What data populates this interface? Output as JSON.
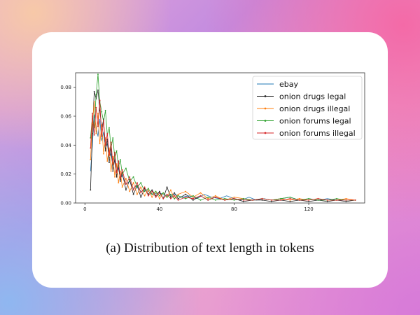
{
  "caption": "(a) Distribution of text length in tokens",
  "chart_data": {
    "type": "line",
    "title": "",
    "xlabel": "",
    "ylabel": "",
    "xlim": [
      -5,
      150
    ],
    "ylim": [
      0,
      0.09
    ],
    "xticks": [
      0,
      40,
      80,
      120
    ],
    "yticks": [
      0.0,
      0.02,
      0.04,
      0.06,
      0.08
    ],
    "ytick_labels": [
      "0.00",
      "0.02",
      "0.04",
      "0.06",
      "0.08"
    ],
    "grid": false,
    "legend_position": "upper right",
    "series": [
      {
        "name": "ebay",
        "color": "#1f77b4",
        "marker": "none",
        "points": [
          [
            3,
            0.022
          ],
          [
            4,
            0.04
          ],
          [
            5,
            0.061
          ],
          [
            6,
            0.052
          ],
          [
            7,
            0.046
          ],
          [
            8,
            0.058
          ],
          [
            9,
            0.043
          ],
          [
            10,
            0.049
          ],
          [
            11,
            0.037
          ],
          [
            12,
            0.041
          ],
          [
            13,
            0.031
          ],
          [
            14,
            0.034
          ],
          [
            15,
            0.026
          ],
          [
            16,
            0.029
          ],
          [
            17,
            0.021
          ],
          [
            18,
            0.024
          ],
          [
            19,
            0.017
          ],
          [
            20,
            0.019
          ],
          [
            22,
            0.013
          ],
          [
            24,
            0.015
          ],
          [
            26,
            0.01
          ],
          [
            28,
            0.012
          ],
          [
            30,
            0.008
          ],
          [
            33,
            0.009
          ],
          [
            36,
            0.006
          ],
          [
            40,
            0.007
          ],
          [
            44,
            0.005
          ],
          [
            48,
            0.006
          ],
          [
            52,
            0.004
          ],
          [
            56,
            0.005
          ],
          [
            60,
            0.003
          ],
          [
            64,
            0.006
          ],
          [
            68,
            0.004
          ],
          [
            72,
            0.003
          ],
          [
            76,
            0.005
          ],
          [
            80,
            0.003
          ],
          [
            84,
            0.002
          ],
          [
            88,
            0.004
          ],
          [
            92,
            0.002
          ],
          [
            96,
            0.003
          ],
          [
            100,
            0.002
          ],
          [
            105,
            0.003
          ],
          [
            110,
            0.004
          ],
          [
            115,
            0.002
          ],
          [
            120,
            0.003
          ],
          [
            125,
            0.002
          ],
          [
            130,
            0.003
          ],
          [
            135,
            0.002
          ],
          [
            140,
            0.002
          ],
          [
            145,
            0.002
          ]
        ]
      },
      {
        "name": "onion drugs legal",
        "color": "#222222",
        "marker": "dot",
        "points": [
          [
            3,
            0.009
          ],
          [
            4,
            0.048
          ],
          [
            5,
            0.077
          ],
          [
            6,
            0.072
          ],
          [
            7,
            0.078
          ],
          [
            8,
            0.064
          ],
          [
            9,
            0.051
          ],
          [
            10,
            0.058
          ],
          [
            11,
            0.036
          ],
          [
            12,
            0.044
          ],
          [
            13,
            0.028
          ],
          [
            14,
            0.039
          ],
          [
            15,
            0.022
          ],
          [
            16,
            0.031
          ],
          [
            17,
            0.018
          ],
          [
            18,
            0.026
          ],
          [
            19,
            0.015
          ],
          [
            20,
            0.021
          ],
          [
            22,
            0.009
          ],
          [
            24,
            0.016
          ],
          [
            26,
            0.006
          ],
          [
            28,
            0.012
          ],
          [
            30,
            0.004
          ],
          [
            32,
            0.01
          ],
          [
            34,
            0.006
          ],
          [
            36,
            0.009
          ],
          [
            38,
            0.005
          ],
          [
            40,
            0.008
          ],
          [
            42,
            0.003
          ],
          [
            44,
            0.011
          ],
          [
            46,
            0.004
          ],
          [
            48,
            0.007
          ],
          [
            50,
            0.003
          ],
          [
            54,
            0.006
          ],
          [
            58,
            0.002
          ],
          [
            62,
            0.005
          ],
          [
            66,
            0.002
          ],
          [
            70,
            0.004
          ],
          [
            75,
            0.002
          ],
          [
            80,
            0.003
          ],
          [
            85,
            0.001
          ],
          [
            90,
            0.002
          ],
          [
            95,
            0.002
          ],
          [
            100,
            0.001
          ],
          [
            105,
            0.002
          ],
          [
            110,
            0.001
          ],
          [
            115,
            0.002
          ],
          [
            120,
            0.001
          ],
          [
            125,
            0.002
          ],
          [
            130,
            0.001
          ],
          [
            135,
            0.002
          ],
          [
            140,
            0.001
          ],
          [
            145,
            0.002
          ]
        ]
      },
      {
        "name": "onion drugs illegal",
        "color": "#ff7f0e",
        "marker": "dot",
        "points": [
          [
            3,
            0.03
          ],
          [
            4,
            0.055
          ],
          [
            5,
            0.07
          ],
          [
            6,
            0.048
          ],
          [
            7,
            0.062
          ],
          [
            8,
            0.041
          ],
          [
            9,
            0.054
          ],
          [
            10,
            0.034
          ],
          [
            11,
            0.045
          ],
          [
            12,
            0.029
          ],
          [
            13,
            0.038
          ],
          [
            14,
            0.022
          ],
          [
            15,
            0.032
          ],
          [
            16,
            0.018
          ],
          [
            17,
            0.027
          ],
          [
            18,
            0.014
          ],
          [
            19,
            0.022
          ],
          [
            20,
            0.011
          ],
          [
            22,
            0.017
          ],
          [
            24,
            0.008
          ],
          [
            26,
            0.014
          ],
          [
            28,
            0.006
          ],
          [
            30,
            0.011
          ],
          [
            32,
            0.005
          ],
          [
            34,
            0.009
          ],
          [
            36,
            0.004
          ],
          [
            38,
            0.008
          ],
          [
            40,
            0.003
          ],
          [
            42,
            0.007
          ],
          [
            44,
            0.004
          ],
          [
            46,
            0.009
          ],
          [
            48,
            0.003
          ],
          [
            50,
            0.006
          ],
          [
            54,
            0.008
          ],
          [
            58,
            0.004
          ],
          [
            62,
            0.007
          ],
          [
            66,
            0.003
          ],
          [
            70,
            0.005
          ],
          [
            75,
            0.002
          ],
          [
            80,
            0.004
          ],
          [
            85,
            0.003
          ],
          [
            90,
            0.002
          ],
          [
            95,
            0.003
          ],
          [
            100,
            0.002
          ],
          [
            105,
            0.003
          ],
          [
            110,
            0.002
          ],
          [
            115,
            0.003
          ],
          [
            120,
            0.002
          ],
          [
            125,
            0.003
          ],
          [
            130,
            0.002
          ],
          [
            135,
            0.002
          ],
          [
            140,
            0.003
          ],
          [
            145,
            0.002
          ]
        ]
      },
      {
        "name": "onion forums legal",
        "color": "#2ca02c",
        "marker": "dot",
        "points": [
          [
            3,
            0.045
          ],
          [
            4,
            0.06
          ],
          [
            5,
            0.052
          ],
          [
            6,
            0.075
          ],
          [
            7,
            0.089
          ],
          [
            8,
            0.07
          ],
          [
            9,
            0.063
          ],
          [
            10,
            0.056
          ],
          [
            11,
            0.064
          ],
          [
            12,
            0.047
          ],
          [
            13,
            0.052
          ],
          [
            14,
            0.038
          ],
          [
            15,
            0.045
          ],
          [
            16,
            0.031
          ],
          [
            17,
            0.036
          ],
          [
            18,
            0.025
          ],
          [
            19,
            0.03
          ],
          [
            20,
            0.02
          ],
          [
            22,
            0.024
          ],
          [
            24,
            0.015
          ],
          [
            26,
            0.018
          ],
          [
            28,
            0.011
          ],
          [
            30,
            0.014
          ],
          [
            32,
            0.008
          ],
          [
            34,
            0.01
          ],
          [
            36,
            0.006
          ],
          [
            38,
            0.008
          ],
          [
            40,
            0.005
          ],
          [
            42,
            0.007
          ],
          [
            44,
            0.004
          ],
          [
            46,
            0.006
          ],
          [
            48,
            0.003
          ],
          [
            50,
            0.005
          ],
          [
            54,
            0.003
          ],
          [
            58,
            0.005
          ],
          [
            62,
            0.002
          ],
          [
            66,
            0.004
          ],
          [
            70,
            0.002
          ],
          [
            75,
            0.003
          ],
          [
            80,
            0.002
          ],
          [
            85,
            0.003
          ],
          [
            90,
            0.002
          ],
          [
            95,
            0.003
          ],
          [
            100,
            0.002
          ],
          [
            105,
            0.003
          ],
          [
            110,
            0.004
          ],
          [
            115,
            0.002
          ],
          [
            120,
            0.003
          ],
          [
            125,
            0.002
          ],
          [
            130,
            0.002
          ],
          [
            135,
            0.003
          ],
          [
            140,
            0.002
          ],
          [
            145,
            0.002
          ]
        ]
      },
      {
        "name": "onion forums illegal",
        "color": "#d62728",
        "marker": "dot",
        "points": [
          [
            3,
            0.038
          ],
          [
            4,
            0.062
          ],
          [
            5,
            0.047
          ],
          [
            6,
            0.066
          ],
          [
            7,
            0.053
          ],
          [
            8,
            0.071
          ],
          [
            9,
            0.046
          ],
          [
            10,
            0.057
          ],
          [
            11,
            0.04
          ],
          [
            12,
            0.048
          ],
          [
            13,
            0.033
          ],
          [
            14,
            0.042
          ],
          [
            15,
            0.027
          ],
          [
            16,
            0.035
          ],
          [
            17,
            0.021
          ],
          [
            18,
            0.029
          ],
          [
            19,
            0.017
          ],
          [
            20,
            0.023
          ],
          [
            22,
            0.013
          ],
          [
            24,
            0.018
          ],
          [
            26,
            0.009
          ],
          [
            28,
            0.014
          ],
          [
            30,
            0.007
          ],
          [
            32,
            0.011
          ],
          [
            34,
            0.005
          ],
          [
            36,
            0.008
          ],
          [
            38,
            0.004
          ],
          [
            40,
            0.007
          ],
          [
            42,
            0.003
          ],
          [
            44,
            0.006
          ],
          [
            46,
            0.003
          ],
          [
            48,
            0.005
          ],
          [
            50,
            0.002
          ],
          [
            54,
            0.004
          ],
          [
            58,
            0.003
          ],
          [
            62,
            0.005
          ],
          [
            66,
            0.002
          ],
          [
            70,
            0.004
          ],
          [
            75,
            0.002
          ],
          [
            80,
            0.003
          ],
          [
            85,
            0.002
          ],
          [
            90,
            0.002
          ],
          [
            95,
            0.003
          ],
          [
            100,
            0.002
          ],
          [
            105,
            0.002
          ],
          [
            110,
            0.003
          ],
          [
            115,
            0.002
          ],
          [
            120,
            0.002
          ],
          [
            125,
            0.003
          ],
          [
            130,
            0.002
          ],
          [
            135,
            0.002
          ],
          [
            140,
            0.002
          ],
          [
            145,
            0.002
          ]
        ]
      }
    ]
  }
}
